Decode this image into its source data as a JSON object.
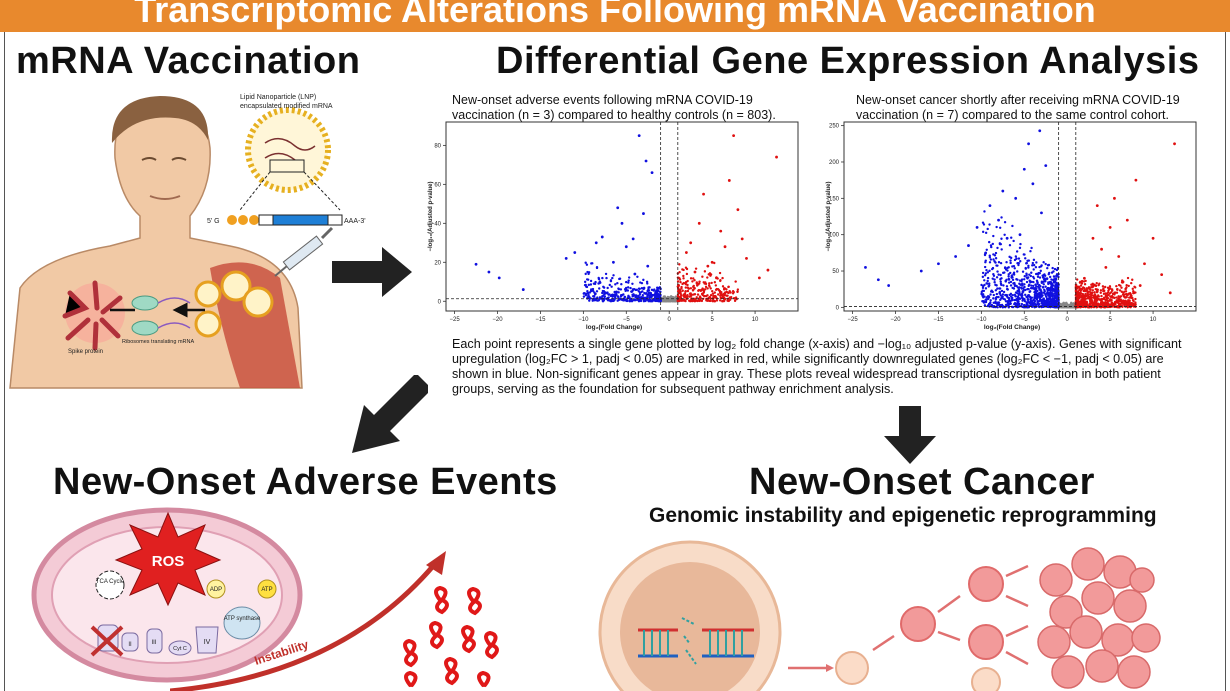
{
  "banner": {
    "title": "Transcriptomic Alterations Following mRNA Vaccination"
  },
  "sections": {
    "mrna": "mRNA Vaccination",
    "dge": "Differential Gene Expression Analysis",
    "adverse": "New-Onset Adverse Events",
    "cancer": "New-Onset Cancer",
    "cancer_sub": "Genomic instability and epigenetic reprogramming"
  },
  "mrna_panel": {
    "lnp_label_1": "Lipid Nanoparticle (LNP)",
    "lnp_label_2": "encapsulated modified mRNA",
    "five_prime": "5' G",
    "three_prime": "AAA-3'",
    "spike": "Spike protein",
    "ribosome": "Ribosomes translating mRNA"
  },
  "captions": {
    "left_1": "New-onset adverse events following mRNA COVID-19",
    "left_2": "vaccination (n = 3) compared to healthy controls (n = 803).",
    "right_1": "New-onset cancer shortly after receiving mRNA COVID-19",
    "right_2": "vaccination (n = 7) compared to the same control cohort."
  },
  "description": "Each point represents a single gene plotted by log₂ fold change (x-axis) and −log₁₀ adjusted p-value (y-axis). Genes with significant upregulation (log₂FC > 1, padj < 0.05) are marked in red, while significantly downregulated genes (log₂FC < −1, padj < 0.05) are shown in blue. Non-significant genes appear in gray. These plots reveal widespread transcriptional dysregulation in both patient groups, serving as the foundation for subsequent pathway enrichment analysis.",
  "mito": {
    "ros": "ROS",
    "tca": "TCA Cycle",
    "adp": "ADP",
    "atp": "ATP",
    "atp_synthase": "ATP synthase",
    "complex_i": "I",
    "complex_ii": "II",
    "complex_iii": "III",
    "cytc": "Cyt C",
    "complex_iv": "IV",
    "instability": "Instability"
  },
  "colors": {
    "banner": "#e8892d",
    "up": "#e01010",
    "down": "#1010e0",
    "ns": "#888888"
  },
  "chart_data": [
    {
      "type": "scatter",
      "title": "",
      "xlabel": "log₂(Fold Change)",
      "ylabel": "−log₁₀(Adjusted p-value)",
      "xlim": [
        -26,
        15
      ],
      "ylim": [
        -5,
        92
      ],
      "xticks": [
        -25,
        -20,
        -15,
        -10,
        -5,
        0,
        5,
        10
      ],
      "yticks": [
        0,
        20,
        40,
        60,
        80
      ],
      "thresholds": {
        "x": [
          -1,
          1
        ],
        "y": 1.3
      },
      "series": [
        {
          "color": "down",
          "points": [
            [
              -22.5,
              19
            ],
            [
              -21,
              15
            ],
            [
              -19.8,
              12
            ],
            [
              -17,
              6
            ],
            [
              -12,
              22
            ],
            [
              -11,
              25
            ],
            [
              -8.5,
              30
            ],
            [
              -7.8,
              33
            ],
            [
              -5.5,
              40
            ],
            [
              -5,
              28
            ],
            [
              -4.2,
              32
            ],
            [
              -3,
              45
            ],
            [
              -2.5,
              18
            ],
            [
              -6.5,
              20
            ],
            [
              -4,
              14
            ],
            [
              -3.5,
              85
            ],
            [
              -2.7,
              72
            ],
            [
              -6,
              48
            ],
            [
              -2,
              66
            ]
          ]
        },
        {
          "color": "up",
          "points": [
            [
              2,
              25
            ],
            [
              2.5,
              30
            ],
            [
              3.5,
              40
            ],
            [
              4,
              55
            ],
            [
              5,
              20
            ],
            [
              5.5,
              12
            ],
            [
              6,
              36
            ],
            [
              7,
              62
            ],
            [
              7.5,
              85
            ],
            [
              8,
              47
            ],
            [
              9,
              22
            ],
            [
              10.5,
              12
            ],
            [
              11.5,
              16
            ],
            [
              12.5,
              74
            ],
            [
              6.5,
              28
            ],
            [
              4.5,
              18
            ],
            [
              3,
              15
            ],
            [
              8.5,
              32
            ]
          ]
        }
      ]
    },
    {
      "type": "scatter",
      "title": "",
      "xlabel": "log₂(Fold Change)",
      "ylabel": "−log₁₀(Adjusted p-value)",
      "xlim": [
        -26,
        15
      ],
      "ylim": [
        -5,
        255
      ],
      "xticks": [
        -25,
        -20,
        -15,
        -10,
        -5,
        0,
        5,
        10
      ],
      "yticks": [
        0,
        50,
        100,
        150,
        200,
        250
      ],
      "thresholds": {
        "x": [
          -1,
          1
        ],
        "y": 1.3
      },
      "series": [
        {
          "color": "down",
          "points": [
            [
              -23.5,
              55
            ],
            [
              -22,
              38
            ],
            [
              -20.8,
              30
            ],
            [
              -17,
              50
            ],
            [
              -15,
              60
            ],
            [
              -13,
              70
            ],
            [
              -11.5,
              85
            ],
            [
              -10.5,
              110
            ],
            [
              -9,
              140
            ],
            [
              -8,
              120
            ],
            [
              -7.5,
              160
            ],
            [
              -6,
              150
            ],
            [
              -5,
              190
            ],
            [
              -4,
              170
            ],
            [
              -3,
              130
            ],
            [
              -2.5,
              195
            ],
            [
              -3.2,
              243
            ],
            [
              -4.5,
              225
            ],
            [
              -7,
              95
            ],
            [
              -5.5,
              100
            ],
            [
              -9.5,
              75
            ]
          ]
        },
        {
          "color": "up",
          "points": [
            [
              2,
              40
            ],
            [
              3,
              95
            ],
            [
              3.5,
              140
            ],
            [
              4,
              80
            ],
            [
              5,
              110
            ],
            [
              6,
              70
            ],
            [
              7,
              120
            ],
            [
              8,
              175
            ],
            [
              9,
              60
            ],
            [
              10,
              95
            ],
            [
              11,
              45
            ],
            [
              12,
              20
            ],
            [
              12.5,
              225
            ],
            [
              6.5,
              35
            ],
            [
              4.5,
              55
            ],
            [
              3.5,
              22
            ],
            [
              8.5,
              30
            ],
            [
              5.5,
              150
            ]
          ]
        }
      ]
    }
  ]
}
